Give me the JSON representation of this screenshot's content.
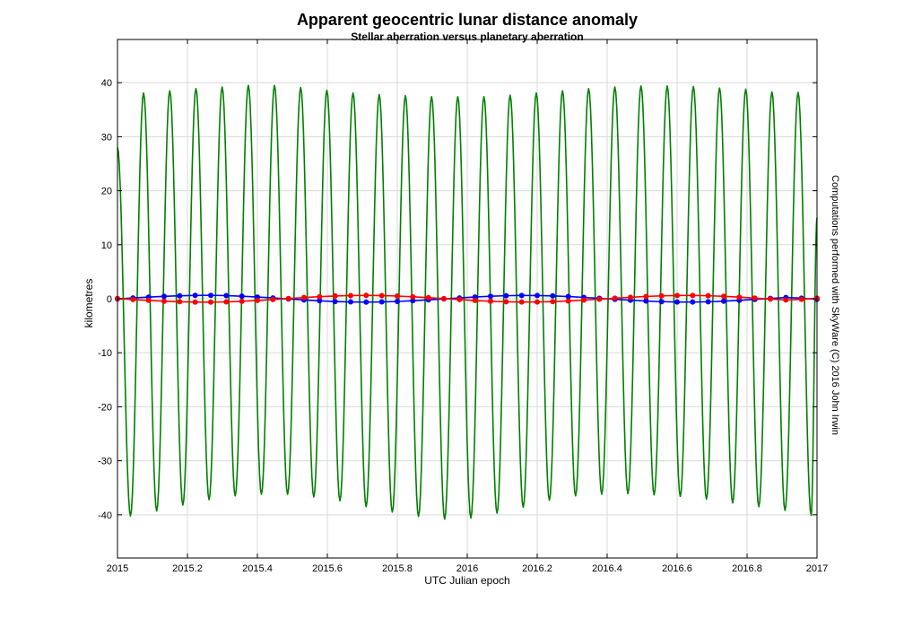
{
  "chart_data": {
    "type": "line",
    "title": "Apparent geocentric lunar distance anomaly",
    "subtitle": "Stellar aberration versus planetary aberration",
    "xlabel": "UTC Julian epoch",
    "ylabel": "kilometres",
    "side_note": "Computations performed with SkyWare (C) 2016 John Irwin",
    "xlim": [
      2015,
      2017
    ],
    "ylim": [
      -48,
      48
    ],
    "xticks": [
      2015,
      2015.2,
      2015.4,
      2015.6,
      2015.8,
      2016,
      2016.2,
      2016.4,
      2016.6,
      2016.8,
      2017
    ],
    "xtick_labels": [
      "2015",
      "2015.2",
      "2015.4",
      "2015.6",
      "2015.8",
      "2016",
      "2016.2",
      "2016.4",
      "2016.6",
      "2016.8",
      "2017"
    ],
    "yticks": [
      -40,
      -30,
      -20,
      -10,
      0,
      10,
      20,
      30,
      40
    ],
    "ytick_labels": [
      "-40",
      "-30",
      "-20",
      "-10",
      "0",
      "10",
      "20",
      "30",
      "40"
    ],
    "grid": true,
    "series": [
      {
        "color": "#008000",
        "marker": "none",
        "x": [
          2015.0,
          2015.0372,
          2015.0746,
          2015.1121,
          2015.1495,
          2015.1869,
          2015.2244,
          2015.2618,
          2015.2992,
          2015.3366,
          2015.3741,
          2015.4115,
          2015.4489,
          2015.4863,
          2015.5238,
          2015.5612,
          2015.5986,
          2015.636,
          2015.6735,
          2015.7109,
          2015.7483,
          2015.7857,
          2015.8232,
          2015.8606,
          2015.898,
          2015.9354,
          2015.9729,
          2016.0103,
          2016.0477,
          2016.0851,
          2016.1226,
          2016.16,
          2016.1974,
          2016.2348,
          2016.2723,
          2016.3097,
          2016.3471,
          2016.3845,
          2016.422,
          2016.4594,
          2016.4968,
          2016.5342,
          2016.5717,
          2016.6091,
          2016.6465,
          2016.6839,
          2016.7214,
          2016.7588,
          2016.7962,
          2016.8336,
          2016.8711,
          2016.9085,
          2016.9459,
          2016.9833,
          2017.0
        ],
        "y": [
          28,
          -40.2,
          38.1,
          -39.3,
          38.5,
          -38.2,
          38.9,
          -37.2,
          39.2,
          -36.5,
          39.5,
          -36.2,
          39.5,
          -36.2,
          39.1,
          -36.7,
          38.6,
          -37.4,
          38.1,
          -38.5,
          37.8,
          -39.5,
          37.6,
          -40.3,
          37.4,
          -40.8,
          37.4,
          -40.6,
          37.4,
          -39.7,
          37.7,
          -38.6,
          38.1,
          -37.3,
          38.5,
          -36.5,
          38.9,
          -36.2,
          39.2,
          -36.1,
          39.4,
          -36.3,
          39.4,
          -36.6,
          39.3,
          -37.1,
          39.0,
          -37.8,
          38.8,
          -38.5,
          38.3,
          -39.2,
          38.2,
          -40.1,
          15
        ]
      },
      {
        "color": "#0000ff",
        "marker": "circle",
        "x": [
          2015.0,
          2015.0444,
          2015.0889,
          2015.1333,
          2015.1778,
          2015.2222,
          2015.2667,
          2015.3111,
          2015.3556,
          2015.4,
          2015.4444,
          2015.4889,
          2015.5333,
          2015.5778,
          2015.6222,
          2015.6667,
          2015.7111,
          2015.7556,
          2015.8,
          2015.8444,
          2015.8889,
          2015.9333,
          2015.9778,
          2016.0222,
          2016.0667,
          2016.1111,
          2016.1556,
          2016.2,
          2016.2444,
          2016.2889,
          2016.3333,
          2016.3778,
          2016.4222,
          2016.4667,
          2016.5111,
          2016.5556,
          2016.6,
          2016.6444,
          2016.6889,
          2016.7333,
          2016.7778,
          2016.8222,
          2016.8667,
          2016.9111,
          2016.9556,
          2017.0
        ],
        "y": [
          -0.05,
          0.15,
          0.3,
          0.45,
          0.55,
          0.62,
          0.63,
          0.58,
          0.47,
          0.32,
          0.15,
          -0.04,
          -0.22,
          -0.38,
          -0.51,
          -0.59,
          -0.62,
          -0.59,
          -0.5,
          -0.36,
          -0.2,
          -0.03,
          0.15,
          0.32,
          0.46,
          0.56,
          0.61,
          0.6,
          0.53,
          0.41,
          0.25,
          0.08,
          -0.1,
          -0.27,
          -0.42,
          -0.54,
          -0.6,
          -0.61,
          -0.56,
          -0.45,
          -0.3,
          -0.12,
          0.06,
          0.23,
          0.1,
          -0.1
        ]
      },
      {
        "color": "#ff0000",
        "marker": "circle",
        "x": [
          2015.0,
          2015.0444,
          2015.0889,
          2015.1333,
          2015.1778,
          2015.2222,
          2015.2667,
          2015.3111,
          2015.3556,
          2015.4,
          2015.4444,
          2015.4889,
          2015.5333,
          2015.5778,
          2015.6222,
          2015.6667,
          2015.7111,
          2015.7556,
          2015.8,
          2015.8444,
          2015.8889,
          2015.9333,
          2015.9778,
          2016.0222,
          2016.0667,
          2016.1111,
          2016.1556,
          2016.2,
          2016.2444,
          2016.2889,
          2016.3333,
          2016.3778,
          2016.4222,
          2016.4667,
          2016.5111,
          2016.5556,
          2016.6,
          2016.6444,
          2016.6889,
          2016.7333,
          2016.7778,
          2016.8222,
          2016.8667,
          2016.9111,
          2016.9556,
          2017.0
        ],
        "y": [
          0.05,
          -0.15,
          -0.3,
          -0.45,
          -0.55,
          -0.62,
          -0.63,
          -0.58,
          -0.47,
          -0.32,
          -0.15,
          0.04,
          0.22,
          0.38,
          0.51,
          0.59,
          0.62,
          0.59,
          0.5,
          0.36,
          0.2,
          0.03,
          -0.15,
          -0.32,
          -0.46,
          -0.56,
          -0.61,
          -0.6,
          -0.53,
          -0.41,
          -0.25,
          -0.08,
          0.1,
          0.27,
          0.42,
          0.54,
          0.6,
          0.61,
          0.56,
          0.45,
          0.3,
          0.12,
          -0.06,
          -0.23,
          -0.1,
          0.1
        ]
      }
    ]
  }
}
